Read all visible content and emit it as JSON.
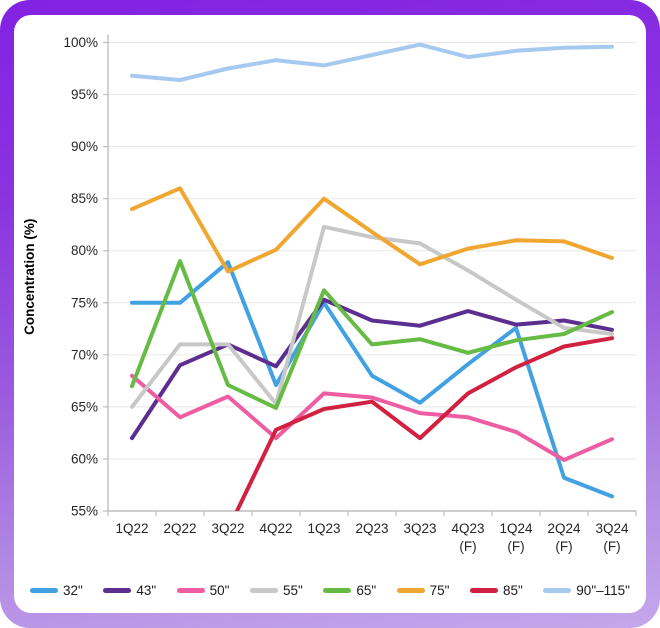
{
  "frame": {
    "border_gradient_top": "#8322E2",
    "border_gradient_bottom": "#C5A7EC",
    "background": "#ffffff"
  },
  "chart_data": {
    "type": "line",
    "title": "",
    "xlabel": "",
    "ylabel": "Concentration (%)",
    "ylim": [
      55,
      100
    ],
    "ytick_step": 5,
    "ytick_labels": [
      "100%",
      "95%",
      "90%",
      "85%",
      "80%",
      "75%",
      "70%",
      "65%",
      "60%",
      "55%"
    ],
    "grid": true,
    "gridline_color": "#e7e7e7",
    "axis_color": "#bfbfbf",
    "label_color": "#262626",
    "legend_position": "bottom",
    "categories": [
      "1Q22",
      "2Q22",
      "3Q22",
      "4Q22",
      "1Q23",
      "2Q23",
      "3Q23",
      "4Q23",
      "1Q24",
      "2Q24",
      "3Q24"
    ],
    "forecast_suffix": "(F)",
    "forecast_start_index": 7,
    "series": [
      {
        "name": "32\"",
        "color": "#41A1E3",
        "values": [
          75.0,
          75.0,
          78.9,
          67.1,
          75.0,
          68.0,
          65.4,
          69.1,
          72.6,
          58.2,
          56.4
        ]
      },
      {
        "name": "43\"",
        "color": "#5B2E90",
        "values": [
          62.0,
          69.0,
          71.0,
          68.9,
          75.3,
          73.3,
          72.8,
          74.2,
          72.9,
          73.3,
          72.4
        ]
      },
      {
        "name": "50\"",
        "color": "#EE5DA2",
        "values": [
          68.0,
          64.0,
          66.0,
          62.0,
          66.3,
          65.9,
          64.4,
          64.0,
          62.6,
          59.9,
          61.9
        ]
      },
      {
        "name": "55\"",
        "color": "#C8C8C8",
        "values": [
          65.0,
          71.0,
          71.0,
          65.3,
          82.3,
          81.3,
          80.7,
          78.1,
          75.3,
          72.6,
          72.0
        ]
      },
      {
        "name": "65\"",
        "color": "#66BB44",
        "values": [
          67.0,
          79.0,
          67.1,
          64.9,
          76.2,
          71.0,
          71.5,
          70.2,
          71.4,
          72.0,
          74.1
        ]
      },
      {
        "name": "75\"",
        "color": "#F0A732",
        "values": [
          84.0,
          86.0,
          78.0,
          80.1,
          85.0,
          81.8,
          78.7,
          80.2,
          81.0,
          80.9,
          79.3
        ]
      },
      {
        "name": "85\"",
        "color": "#D22040",
        "values": [
          null,
          null,
          53.2,
          62.8,
          64.8,
          65.5,
          62.0,
          66.3,
          68.8,
          70.8,
          71.6
        ]
      },
      {
        "name": "90\"–115\"",
        "color": "#A6C9F0",
        "values": [
          96.8,
          96.4,
          97.5,
          98.3,
          97.8,
          98.8,
          99.8,
          98.6,
          99.2,
          99.5,
          99.6
        ]
      }
    ]
  }
}
